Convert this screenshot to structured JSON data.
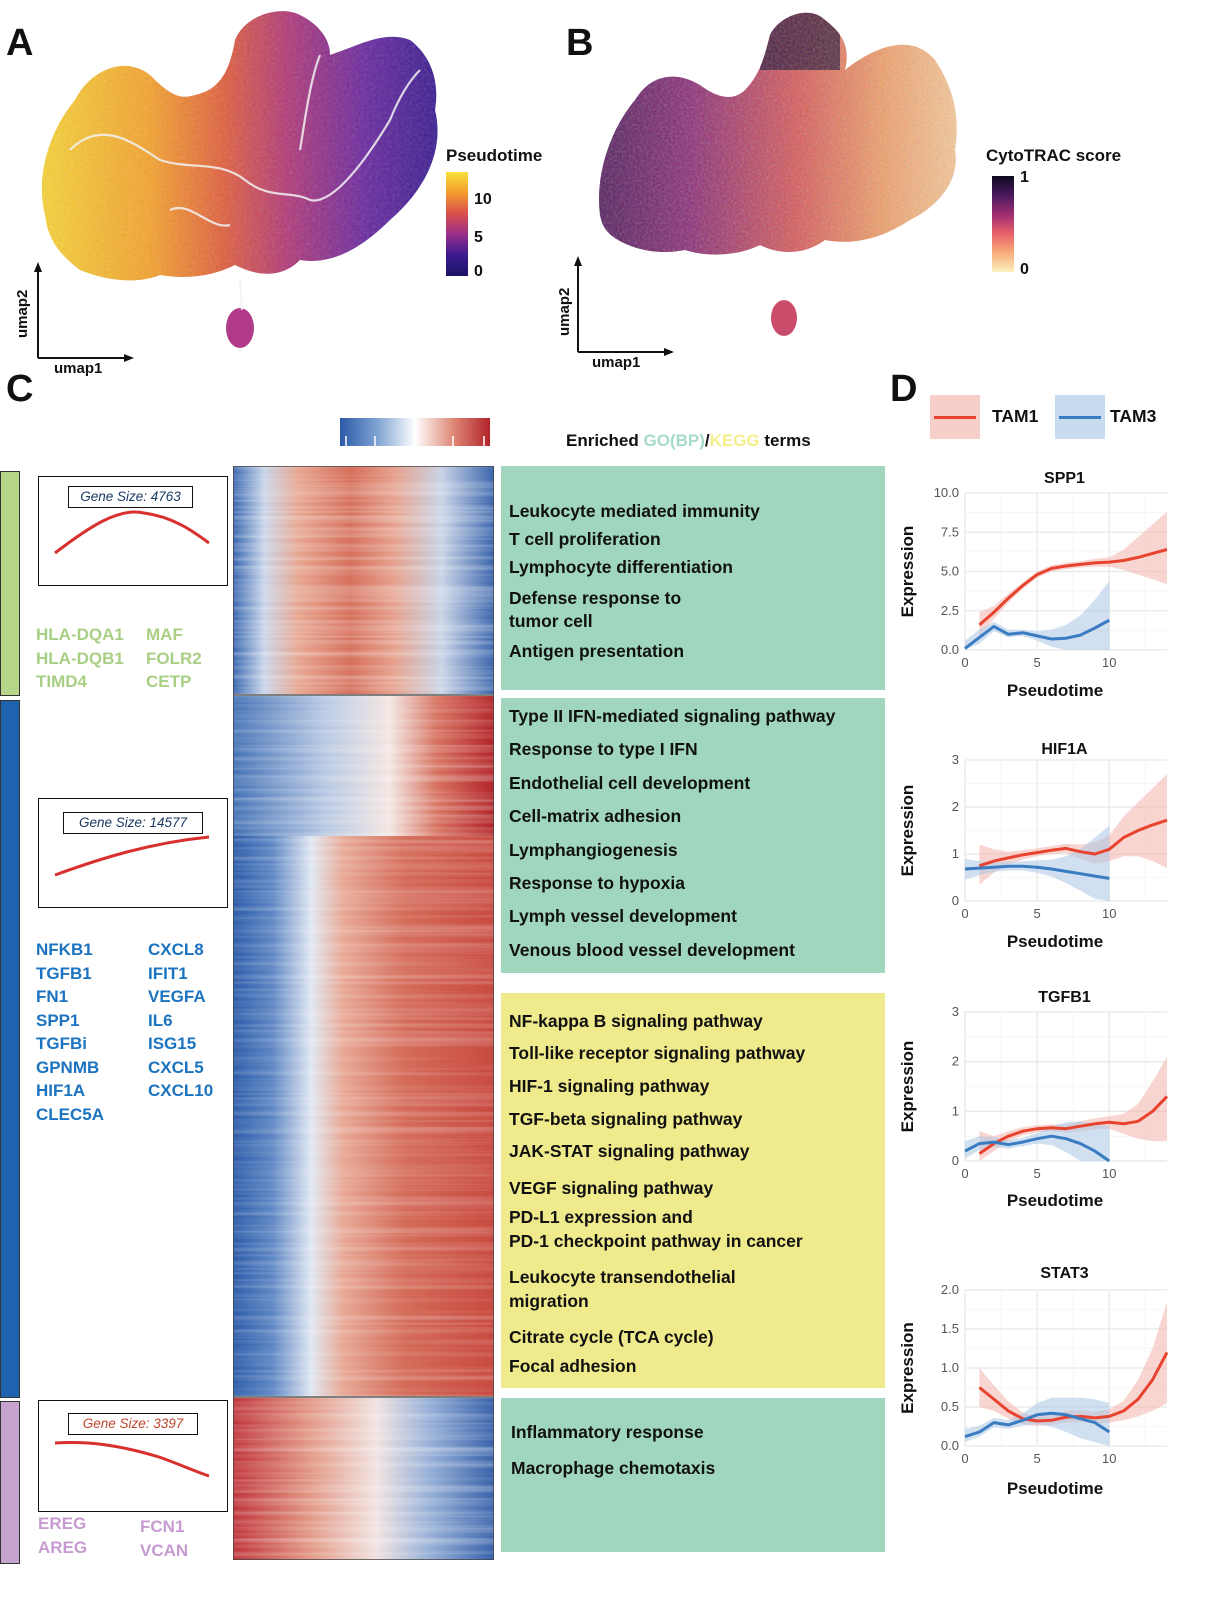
{
  "panels": {
    "A": "A",
    "B": "B",
    "C": "C",
    "D": "D"
  },
  "panel_a": {
    "legend_title": "Pseudotime",
    "legend_ticks": [
      "10",
      "5",
      "0"
    ],
    "axis_x": "umap1",
    "axis_y": "umap2"
  },
  "panel_b": {
    "legend_title": "CytoTRAC score",
    "legend_ticks": [
      "1",
      "0"
    ],
    "axis_x": "umap1",
    "axis_y": "umap2"
  },
  "panel_c": {
    "enriched_label_prefix": "Enriched ",
    "enriched_go": "GO(BP)",
    "enriched_slash": "/",
    "enriched_kegg": "KEGG",
    "enriched_suffix": " terms",
    "colors": {
      "go": "#a6dcc5",
      "kegg": "#f5ee8a",
      "go_box": "#9fd6bd",
      "kegg_box": "#efea8c"
    },
    "clusters": [
      {
        "gene_size": "Gene Size: 4763",
        "tag_color": "#1a3a63",
        "bar_color": "#b7d68a",
        "gene_color": "#a9cf84",
        "genes_left": [
          "HLA-DQA1",
          "HLA-DQB1",
          "TIMD4"
        ],
        "genes_right": [
          "MAF",
          "FOLR2",
          "CETP"
        ]
      },
      {
        "gene_size": "Gene Size: 14577",
        "tag_color": "#1a3a63",
        "bar_color": "#1d63ad",
        "gene_color": "#1c73c0",
        "genes_left": [
          "NFKB1",
          "TGFB1",
          "FN1",
          "SPP1",
          "TGFBi",
          "GPNMB",
          "HIF1A",
          "CLEC5A"
        ],
        "genes_right": [
          "CXCL8",
          "IFIT1",
          "VEGFA",
          "IL6",
          "ISG15",
          "CXCL5",
          "CXCL10"
        ]
      },
      {
        "gene_size": "Gene Size: 3397",
        "tag_color": "#c0442b",
        "bar_color": "#c6a3cf",
        "gene_color": "#c79bd1",
        "genes_left": [
          "EREG",
          "AREG"
        ],
        "genes_right": [
          "FCN1",
          "VCAN"
        ]
      }
    ],
    "term_groups": [
      {
        "kind": "GO",
        "terms": [
          "Leukocyte mediated immunity",
          "T cell proliferation",
          "Lymphocyte differentiation",
          "Defense response to",
          "tumor cell",
          "Antigen presentation"
        ]
      },
      {
        "kind": "GO",
        "terms": [
          "Type II IFN-mediated signaling pathway",
          "Response to type I IFN",
          "Endothelial cell development",
          "Cell-matrix adhesion",
          "Lymphangiogenesis",
          "Response to hypoxia",
          "Lymph vessel development",
          "Venous blood vessel development"
        ]
      },
      {
        "kind": "KEGG",
        "terms": [
          "NF-kappa B signaling pathway",
          "Toll-like receptor signaling pathway",
          "HIF-1 signaling pathway",
          "TGF-beta signaling pathway",
          "JAK-STAT signaling pathway",
          "VEGF signaling pathway",
          "PD-L1 expression and",
          "PD-1 checkpoint pathway in cancer",
          "Leukocyte transendothelial",
          "migration",
          "Citrate cycle (TCA cycle)",
          "Focal adhesion"
        ]
      },
      {
        "kind": "GO",
        "terms": [
          "Inflammatory response",
          "Macrophage chemotaxis"
        ]
      }
    ]
  },
  "panel_d": {
    "legend": [
      {
        "name": "TAM1",
        "color": "#e8432e"
      },
      {
        "name": "TAM3",
        "color": "#3a7cc1"
      }
    ],
    "xlabel": "Pseudotime",
    "ylabel": "Expression"
  },
  "chart_data": [
    {
      "type": "line",
      "title": "SPP1",
      "xlabel": "Pseudotime",
      "ylabel": "Expression",
      "xticks": [
        "0",
        "5",
        "10"
      ],
      "yticks": [
        "0.0",
        "2.5",
        "5.0",
        "7.5",
        "10.0"
      ],
      "xlim": [
        0,
        14
      ],
      "ylim": [
        0,
        10
      ],
      "series": [
        {
          "name": "TAM1",
          "x": [
            1,
            2,
            3,
            4,
            5,
            6,
            7,
            8,
            9,
            10,
            11,
            12,
            13,
            14
          ],
          "y": [
            1.6,
            2.4,
            3.3,
            4.1,
            4.8,
            5.2,
            5.35,
            5.45,
            5.55,
            5.6,
            5.7,
            5.9,
            6.15,
            6.4
          ],
          "lo": [
            0.9,
            2.0,
            3.0,
            3.9,
            4.6,
            5.0,
            5.15,
            5.25,
            5.3,
            5.3,
            5.1,
            4.8,
            4.5,
            4.2
          ],
          "hi": [
            2.4,
            2.8,
            3.6,
            4.3,
            5.0,
            5.4,
            5.55,
            5.65,
            5.8,
            5.9,
            6.4,
            7.2,
            8.0,
            8.8
          ]
        },
        {
          "name": "TAM3",
          "x": [
            0,
            1,
            2,
            3,
            4,
            5,
            6,
            7,
            8,
            9,
            10
          ],
          "y": [
            0.1,
            0.8,
            1.5,
            1.0,
            1.1,
            0.9,
            0.7,
            0.75,
            0.95,
            1.4,
            1.9
          ],
          "lo": [
            0,
            0.4,
            1.2,
            0.8,
            0.9,
            0.6,
            0.2,
            0,
            0,
            0,
            0
          ],
          "hi": [
            0.6,
            1.3,
            1.8,
            1.3,
            1.3,
            1.2,
            1.3,
            1.6,
            2.2,
            3.2,
            4.4
          ]
        }
      ]
    },
    {
      "type": "line",
      "title": "HIF1A",
      "xlabel": "Pseudotime",
      "ylabel": "Expression",
      "xticks": [
        "0",
        "5",
        "10"
      ],
      "yticks": [
        "0",
        "1",
        "2",
        "3"
      ],
      "xlim": [
        0,
        14
      ],
      "ylim": [
        0,
        3
      ],
      "series": [
        {
          "name": "TAM1",
          "x": [
            1,
            2,
            3,
            4,
            5,
            6,
            7,
            8,
            9,
            10,
            11,
            12,
            13,
            14
          ],
          "y": [
            0.75,
            0.85,
            0.92,
            0.98,
            1.03,
            1.08,
            1.12,
            1.05,
            1.0,
            1.1,
            1.35,
            1.5,
            1.62,
            1.72
          ],
          "lo": [
            0.35,
            0.6,
            0.78,
            0.88,
            0.95,
            1.0,
            1.02,
            0.9,
            0.8,
            0.85,
            0.95,
            0.95,
            0.85,
            0.7
          ],
          "hi": [
            1.2,
            1.1,
            1.05,
            1.08,
            1.12,
            1.17,
            1.22,
            1.2,
            1.25,
            1.4,
            1.8,
            2.1,
            2.4,
            2.7
          ]
        },
        {
          "name": "TAM3",
          "x": [
            0,
            1,
            2,
            3,
            4,
            5,
            6,
            7,
            8,
            9,
            10
          ],
          "y": [
            0.68,
            0.7,
            0.72,
            0.74,
            0.74,
            0.72,
            0.68,
            0.63,
            0.58,
            0.53,
            0.48
          ],
          "lo": [
            0.45,
            0.55,
            0.62,
            0.65,
            0.65,
            0.6,
            0.52,
            0.38,
            0.22,
            0.05,
            0
          ],
          "hi": [
            0.9,
            0.85,
            0.82,
            0.83,
            0.85,
            0.86,
            0.88,
            0.95,
            1.1,
            1.35,
            1.6
          ]
        }
      ]
    },
    {
      "type": "line",
      "title": "TGFB1",
      "xlabel": "Pseudotime",
      "ylabel": "Expression",
      "xticks": [
        "0",
        "5",
        "10"
      ],
      "yticks": [
        "0",
        "1",
        "2",
        "3"
      ],
      "xlim": [
        0,
        14
      ],
      "ylim": [
        0,
        3
      ],
      "series": [
        {
          "name": "TAM1",
          "x": [
            1,
            2,
            3,
            4,
            5,
            6,
            7,
            8,
            9,
            10,
            11,
            12,
            13,
            14
          ],
          "y": [
            0.15,
            0.35,
            0.5,
            0.6,
            0.65,
            0.67,
            0.65,
            0.7,
            0.75,
            0.78,
            0.75,
            0.8,
            1.0,
            1.3
          ],
          "lo": [
            0,
            0.2,
            0.4,
            0.52,
            0.58,
            0.6,
            0.57,
            0.6,
            0.64,
            0.65,
            0.55,
            0.45,
            0.4,
            0.4
          ],
          "hi": [
            0.6,
            0.5,
            0.6,
            0.68,
            0.72,
            0.74,
            0.73,
            0.8,
            0.86,
            0.9,
            0.95,
            1.15,
            1.6,
            2.1
          ]
        },
        {
          "name": "TAM3",
          "x": [
            0,
            1,
            2,
            3,
            4,
            5,
            6,
            7,
            8,
            9,
            10
          ],
          "y": [
            0.2,
            0.35,
            0.38,
            0.33,
            0.38,
            0.45,
            0.5,
            0.45,
            0.35,
            0.2,
            0.0
          ],
          "lo": [
            0.05,
            0.22,
            0.28,
            0.25,
            0.3,
            0.35,
            0.32,
            0.18,
            0,
            0,
            0
          ],
          "hi": [
            0.4,
            0.5,
            0.48,
            0.42,
            0.47,
            0.56,
            0.7,
            0.78,
            0.8,
            0.75,
            0.7
          ]
        }
      ]
    },
    {
      "type": "line",
      "title": "STAT3",
      "xlabel": "Pseudotime",
      "ylabel": "Expression",
      "xticks": [
        "0",
        "5",
        "10"
      ],
      "yticks": [
        "0.0",
        "0.5",
        "1.0",
        "1.5",
        "2.0"
      ],
      "xlim": [
        0,
        14
      ],
      "ylim": [
        0,
        2
      ],
      "series": [
        {
          "name": "TAM1",
          "x": [
            1,
            2,
            3,
            4,
            5,
            6,
            7,
            8,
            9,
            10,
            11,
            12,
            13,
            14
          ],
          "y": [
            0.75,
            0.6,
            0.45,
            0.35,
            0.32,
            0.33,
            0.37,
            0.38,
            0.36,
            0.38,
            0.45,
            0.6,
            0.85,
            1.2
          ],
          "lo": [
            0.5,
            0.45,
            0.35,
            0.28,
            0.26,
            0.27,
            0.3,
            0.31,
            0.29,
            0.3,
            0.33,
            0.38,
            0.45,
            0.55
          ],
          "hi": [
            1.0,
            0.78,
            0.57,
            0.43,
            0.38,
            0.4,
            0.45,
            0.46,
            0.44,
            0.47,
            0.58,
            0.85,
            1.25,
            1.85
          ]
        },
        {
          "name": "TAM3",
          "x": [
            0,
            1,
            2,
            3,
            4,
            5,
            6,
            7,
            8,
            9,
            10
          ],
          "y": [
            0.12,
            0.18,
            0.3,
            0.27,
            0.33,
            0.4,
            0.42,
            0.4,
            0.35,
            0.3,
            0.18
          ],
          "lo": [
            0.05,
            0.12,
            0.24,
            0.22,
            0.26,
            0.28,
            0.25,
            0.18,
            0.1,
            0.05,
            0
          ],
          "hi": [
            0.22,
            0.26,
            0.36,
            0.33,
            0.42,
            0.55,
            0.62,
            0.62,
            0.62,
            0.6,
            0.55
          ]
        }
      ]
    }
  ]
}
